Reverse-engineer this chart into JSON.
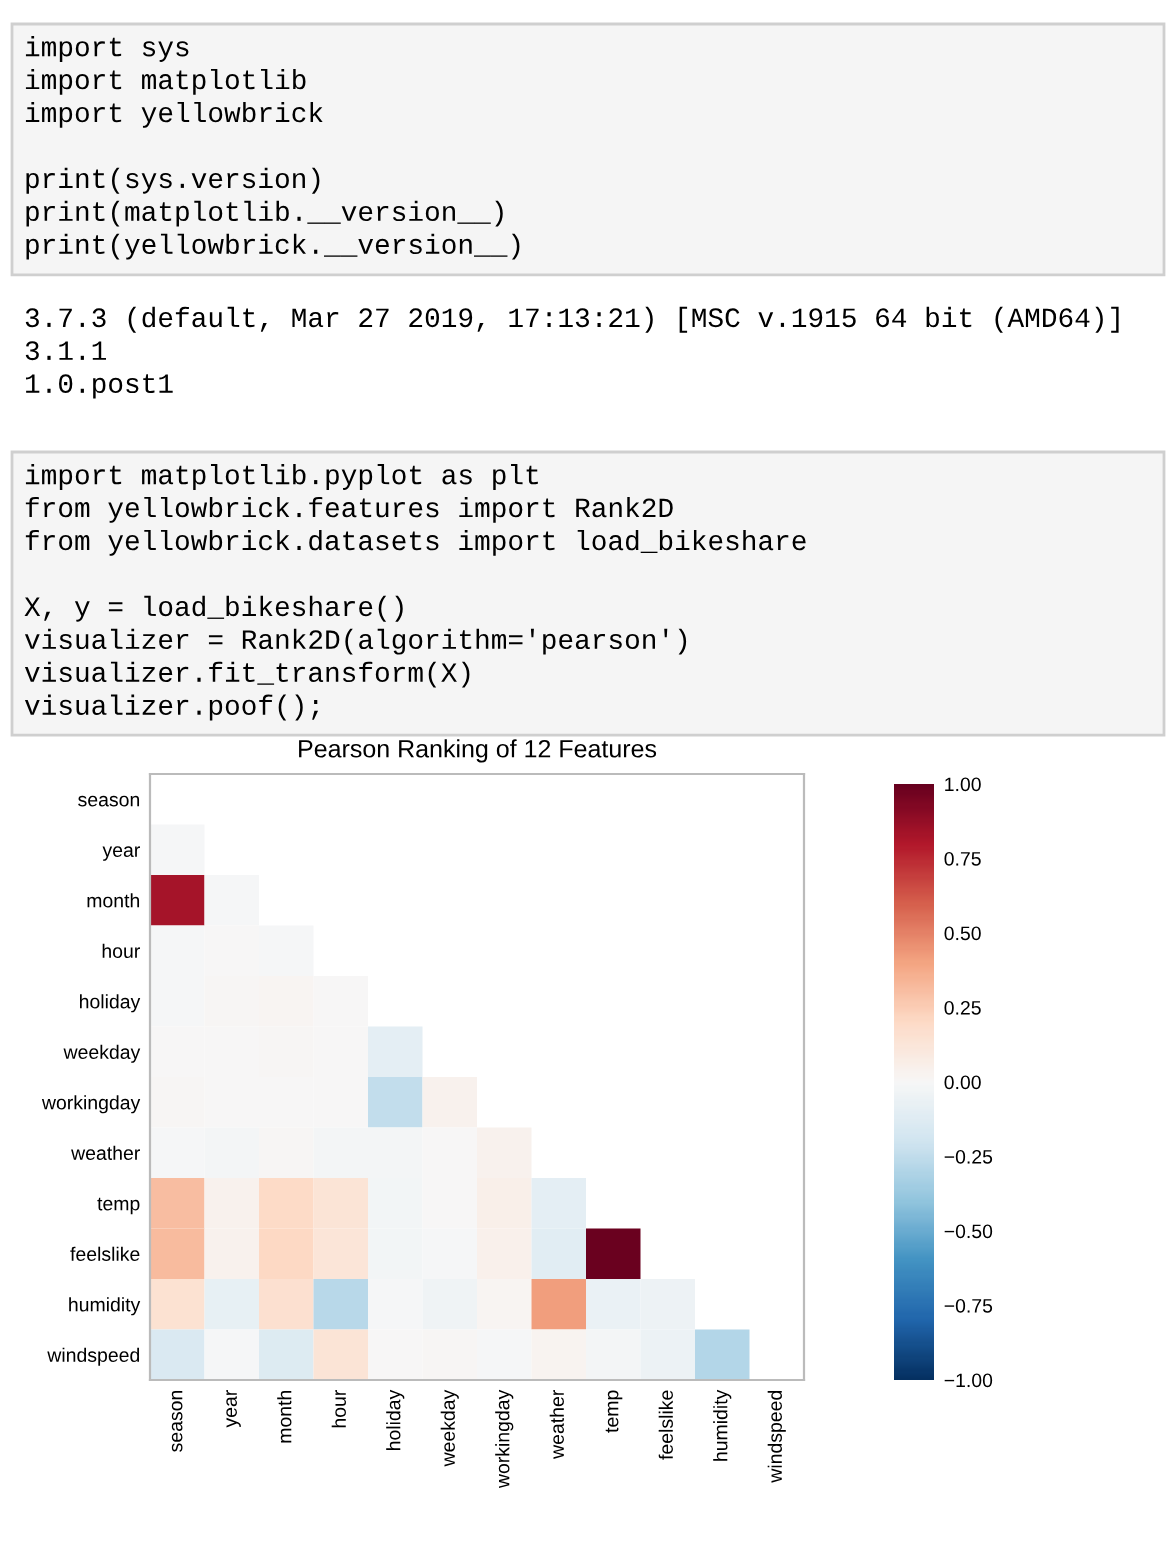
{
  "chart_data": {
    "type": "heatmap",
    "title": "Pearson Ranking of 12 Features",
    "annotations": [
      "import sys\nimport matplotlib\nimport yellowbrick\n\nprint(sys.version)\nprint(matplotlib.__version__)\nprint(yellowbrick.__version__)",
      "3.7.3 (default, Mar 27 2019, 17:13:21) [MSC v.1915 64 bit (AMD64)]\n3.1.1\n1.0.post1",
      "import matplotlib.pyplot as plt\nfrom yellowbrick.features import Rank2D\nfrom yellowbrick.datasets import load_bikeshare\n\nX, y = load_bikeshare()\nvisualizer = Rank2D(algorithm='pearson')\nvisualizer.fit_transform(X)\nvisualizer.poof();"
    ],
    "categories": [
      "season",
      "year",
      "month",
      "hour",
      "holiday",
      "weekday",
      "workingday",
      "weather",
      "temp",
      "feelslike",
      "humidity",
      "windspeed"
    ],
    "y_categories": [
      "season",
      "year",
      "month",
      "hour",
      "holiday",
      "weekday",
      "workingday",
      "weather",
      "temp",
      "feelslike",
      "humidity",
      "windspeed"
    ],
    "cells": [
      [
        null,
        null,
        null,
        null,
        null,
        null,
        null,
        null,
        null,
        null,
        null,
        null
      ],
      [
        -0.01,
        null,
        null,
        null,
        null,
        null,
        null,
        null,
        null,
        null,
        null,
        null
      ],
      [
        0.83,
        -0.01,
        null,
        null,
        null,
        null,
        null,
        null,
        null,
        null,
        null,
        null
      ],
      [
        -0.01,
        0.0,
        -0.01,
        null,
        null,
        null,
        null,
        null,
        null,
        null,
        null,
        null
      ],
      [
        -0.01,
        0.01,
        0.02,
        0.0,
        null,
        null,
        null,
        null,
        null,
        null,
        null,
        null
      ],
      [
        0.0,
        0.0,
        0.01,
        0.0,
        -0.1,
        null,
        null,
        null,
        null,
        null,
        null,
        null
      ],
      [
        0.01,
        0.0,
        0.0,
        0.0,
        -0.25,
        0.04,
        null,
        null,
        null,
        null,
        null,
        null
      ],
      [
        -0.01,
        -0.02,
        0.01,
        -0.02,
        -0.02,
        0.0,
        0.04,
        null,
        null,
        null,
        null,
        null
      ],
      [
        0.31,
        0.04,
        0.2,
        0.14,
        -0.03,
        0.0,
        0.06,
        -0.1,
        null,
        null,
        null,
        null
      ],
      [
        0.32,
        0.04,
        0.21,
        0.13,
        -0.03,
        -0.01,
        0.05,
        -0.11,
        0.99,
        null,
        null,
        null
      ],
      [
        0.15,
        -0.08,
        0.16,
        -0.28,
        -0.01,
        -0.04,
        0.02,
        0.42,
        -0.07,
        -0.05,
        null,
        null
      ],
      [
        -0.15,
        -0.01,
        -0.14,
        0.14,
        0.0,
        0.01,
        -0.01,
        0.03,
        -0.02,
        -0.06,
        -0.29,
        null
      ]
    ],
    "clim": [
      -1,
      1
    ],
    "cticks": [
      {
        "value": -1,
        "label": "−1.00"
      },
      {
        "value": -0.75,
        "label": "−0.75"
      },
      {
        "value": -0.5,
        "label": "−0.50"
      },
      {
        "value": -0.25,
        "label": "−0.25"
      },
      {
        "value": 0,
        "label": "0.00"
      },
      {
        "value": 0.25,
        "label": "0.25"
      },
      {
        "value": 0.5,
        "label": "0.50"
      },
      {
        "value": 0.75,
        "label": "0.75"
      },
      {
        "value": 1,
        "label": "1.00"
      }
    ],
    "grid": false
  }
}
